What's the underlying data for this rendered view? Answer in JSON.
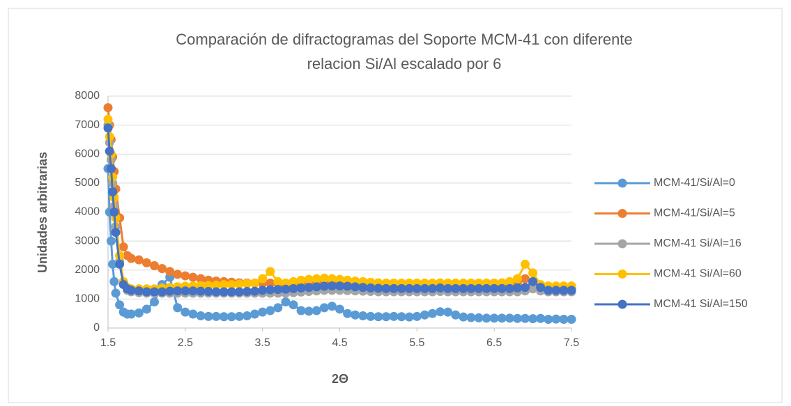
{
  "chart_data": {
    "type": "scatter",
    "title": "Comparación de difractogramas del Soporte MCM-41 con diferente",
    "subtitle": "relacion Si/Al escalado por 6",
    "x_label": "2Θ",
    "y_label": "Unidades arbitrarias",
    "x": [
      1.5,
      1.52,
      1.54,
      1.56,
      1.58,
      1.6,
      1.65,
      1.7,
      1.75,
      1.8,
      1.9,
      2,
      2.1,
      2.2,
      2.3,
      2.4,
      2.5,
      2.6,
      2.7,
      2.8,
      2.9,
      3,
      3.1,
      3.2,
      3.3,
      3.4,
      3.5,
      3.6,
      3.7,
      3.8,
      3.9,
      4,
      4.1,
      4.2,
      4.3,
      4.4,
      4.5,
      4.6,
      4.7,
      4.8,
      4.9,
      5,
      5.1,
      5.2,
      5.3,
      5.4,
      5.5,
      5.6,
      5.7,
      5.8,
      5.9,
      6,
      6.1,
      6.2,
      6.3,
      6.4,
      6.5,
      6.6,
      6.7,
      6.8,
      6.9,
      7,
      7.1,
      7.2,
      7.3,
      7.4,
      7.5
    ],
    "series": [
      {
        "name": "MCM-41/Si/Al=0",
        "color": "#5b9bd5",
        "values": [
          5500,
          4000,
          3000,
          2200,
          1600,
          1200,
          800,
          550,
          480,
          480,
          520,
          650,
          900,
          1500,
          1750,
          700,
          550,
          480,
          420,
          400,
          400,
          390,
          390,
          400,
          420,
          480,
          550,
          600,
          700,
          900,
          800,
          600,
          580,
          600,
          700,
          750,
          650,
          500,
          450,
          420,
          400,
          390,
          390,
          400,
          390,
          380,
          400,
          450,
          500,
          560,
          550,
          450,
          380,
          360,
          350,
          340,
          340,
          340,
          340,
          330,
          330,
          320,
          330,
          300,
          310,
          300,
          300
        ]
      },
      {
        "name": "MCM-41/Si/Al=5",
        "color": "#ed7d31",
        "values": [
          7600,
          7000,
          6500,
          5900,
          5400,
          4800,
          3800,
          2800,
          2500,
          2400,
          2350,
          2250,
          2150,
          2050,
          1950,
          1850,
          1800,
          1750,
          1700,
          1650,
          1620,
          1600,
          1580,
          1560,
          1550,
          1550,
          1540,
          1550,
          1520,
          1500,
          1500,
          1500,
          1520,
          1550,
          1550,
          1550,
          1530,
          1500,
          1480,
          1470,
          1460,
          1450,
          1450,
          1450,
          1450,
          1450,
          1450,
          1450,
          1450,
          1460,
          1450,
          1450,
          1450,
          1450,
          1450,
          1450,
          1450,
          1450,
          1460,
          1500,
          1700,
          1600,
          1450,
          1400,
          1400,
          1400,
          1400
        ]
      },
      {
        "name": "MCM-41 Si/Al=16",
        "color": "#a5a5a5",
        "values": [
          7000,
          6400,
          5800,
          5000,
          4200,
          3500,
          2300,
          1500,
          1300,
          1250,
          1220,
          1200,
          1200,
          1200,
          1200,
          1200,
          1200,
          1200,
          1200,
          1200,
          1200,
          1200,
          1200,
          1200,
          1200,
          1200,
          1200,
          1200,
          1200,
          1200,
          1220,
          1240,
          1260,
          1280,
          1300,
          1300,
          1300,
          1290,
          1280,
          1270,
          1260,
          1250,
          1250,
          1250,
          1250,
          1250,
          1250,
          1250,
          1250,
          1260,
          1250,
          1250,
          1250,
          1250,
          1250,
          1250,
          1250,
          1250,
          1250,
          1250,
          1280,
          1350,
          1280,
          1250,
          1250,
          1250,
          1250
        ]
      },
      {
        "name": "MCM-41 Si/Al=60",
        "color": "#ffc000",
        "values": [
          7200,
          6600,
          6000,
          5200,
          4500,
          3800,
          2500,
          1600,
          1400,
          1350,
          1350,
          1350,
          1350,
          1380,
          1400,
          1420,
          1440,
          1450,
          1460,
          1470,
          1480,
          1500,
          1500,
          1520,
          1530,
          1550,
          1700,
          1950,
          1600,
          1550,
          1600,
          1650,
          1680,
          1700,
          1720,
          1700,
          1680,
          1650,
          1620,
          1600,
          1580,
          1560,
          1550,
          1550,
          1550,
          1550,
          1550,
          1550,
          1550,
          1560,
          1550,
          1550,
          1550,
          1550,
          1550,
          1550,
          1550,
          1560,
          1600,
          1700,
          2200,
          1900,
          1500,
          1450,
          1450,
          1450,
          1450
        ]
      },
      {
        "name": "MCM-41 Si/Al=150",
        "color": "#4472c4",
        "values": [
          6900,
          6100,
          5500,
          4700,
          4000,
          3300,
          2200,
          1500,
          1350,
          1300,
          1280,
          1250,
          1250,
          1250,
          1270,
          1280,
          1280,
          1280,
          1270,
          1260,
          1250,
          1250,
          1250,
          1250,
          1260,
          1270,
          1300,
          1320,
          1330,
          1340,
          1360,
          1380,
          1400,
          1420,
          1440,
          1450,
          1450,
          1440,
          1420,
          1400,
          1380,
          1370,
          1360,
          1360,
          1360,
          1360,
          1360,
          1360,
          1360,
          1380,
          1360,
          1360,
          1360,
          1360,
          1360,
          1360,
          1360,
          1360,
          1360,
          1380,
          1400,
          1600,
          1400,
          1300,
          1300,
          1300,
          1300
        ]
      }
    ],
    "xlim": [
      1.5,
      7.5
    ],
    "xticks": [
      1.5,
      2.5,
      3.5,
      4.5,
      5.5,
      6.5,
      7.5
    ],
    "ylim": [
      0,
      8000
    ],
    "yticks": [
      0,
      1000,
      2000,
      3000,
      4000,
      5000,
      6000,
      7000,
      8000
    ],
    "grid": true,
    "legend": "right"
  }
}
